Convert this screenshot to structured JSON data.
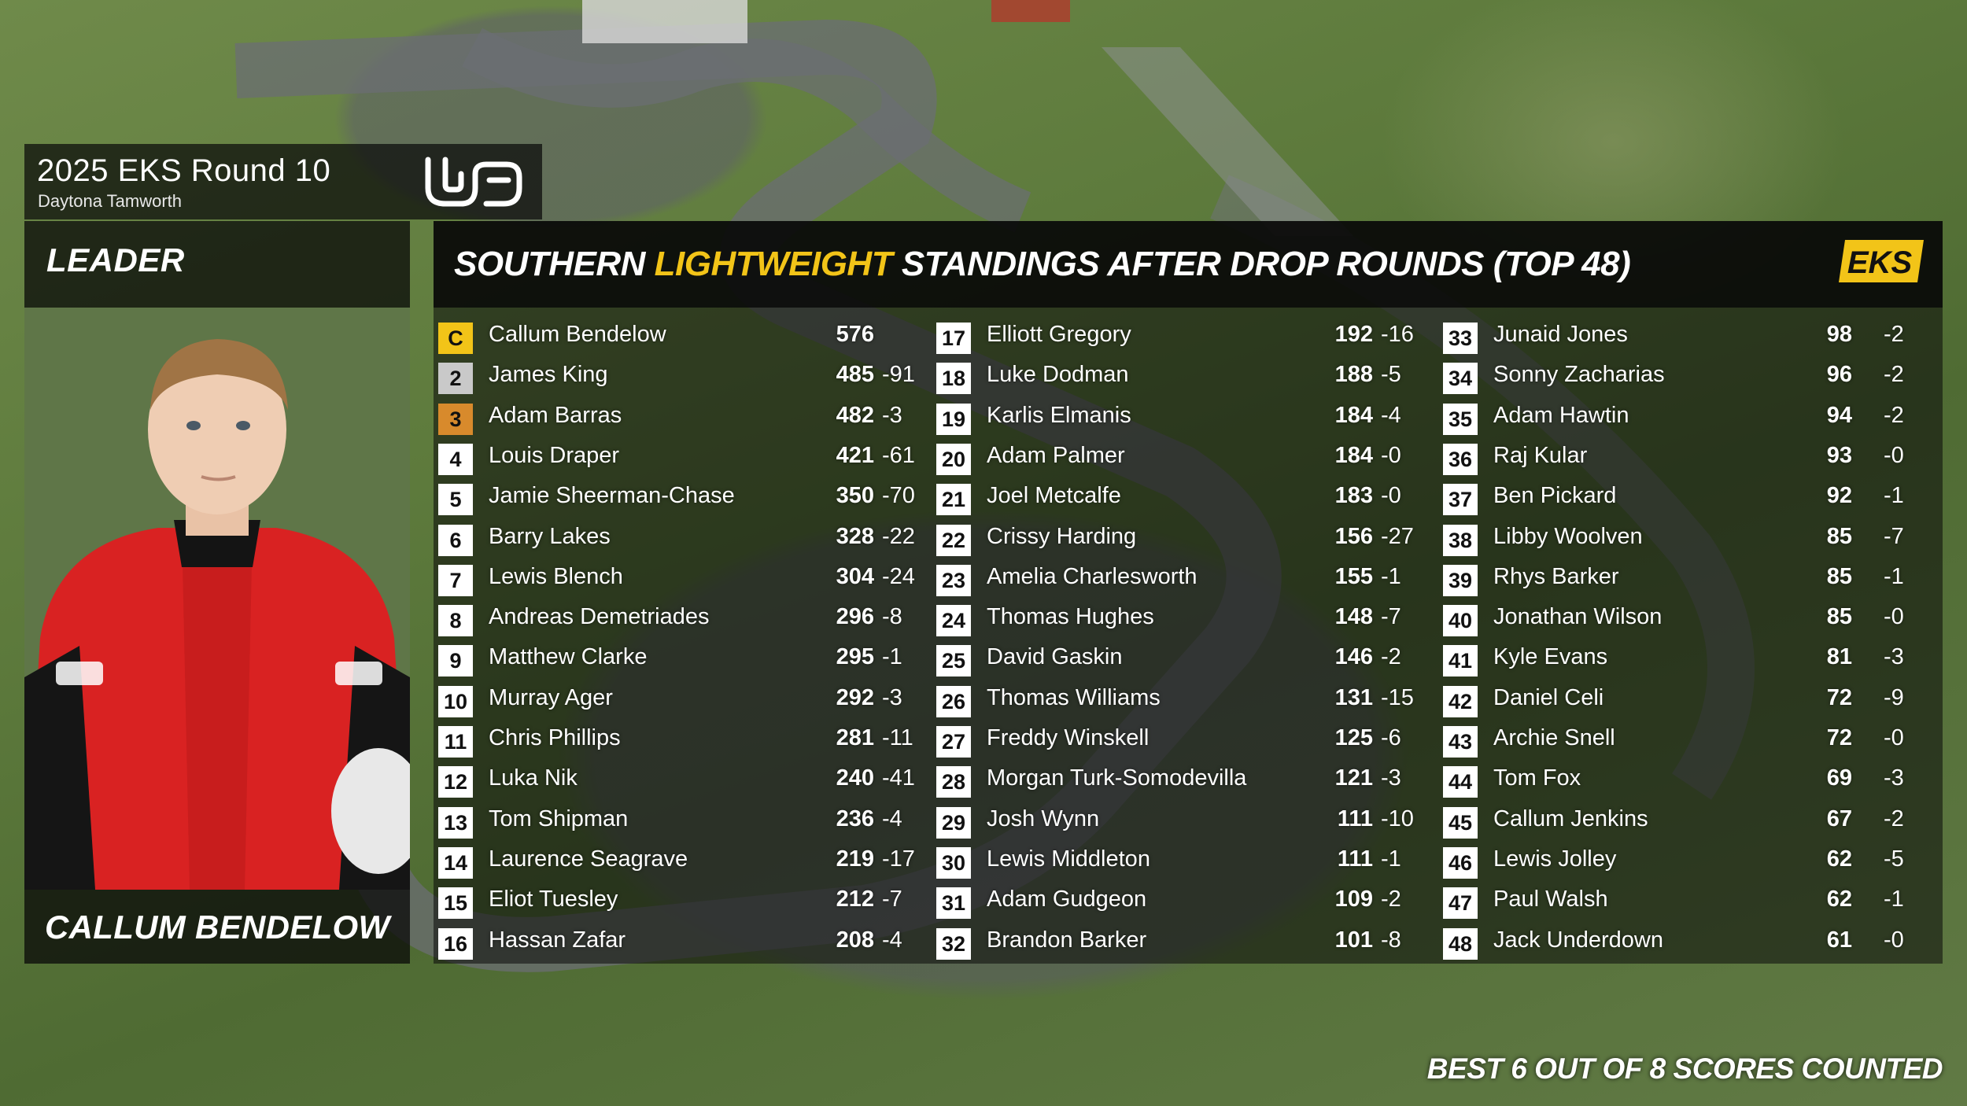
{
  "event": {
    "title": "2025 EKS Round 10",
    "venue": "Daytona Tamworth"
  },
  "leader": {
    "label": "LEADER",
    "name": "CALLUM BENDELOW"
  },
  "standings": {
    "title_part1": "SOUTHERN ",
    "title_accent": "LIGHTWEIGHT",
    "title_part2": " STANDINGS AFTER DROP ROUNDS (TOP 48)",
    "accent_color": "#f2c418",
    "logo_text": "EKS",
    "rows": [
      {
        "pos": "C",
        "name": "Callum Bendelow",
        "points": "576",
        "drop": ""
      },
      {
        "pos": "2",
        "name": "James King",
        "points": "485",
        "drop": "-91"
      },
      {
        "pos": "3",
        "name": "Adam Barras",
        "points": "482",
        "drop": "-3"
      },
      {
        "pos": "4",
        "name": "Louis Draper",
        "points": "421",
        "drop": "-61"
      },
      {
        "pos": "5",
        "name": "Jamie Sheerman-Chase",
        "points": "350",
        "drop": "-70"
      },
      {
        "pos": "6",
        "name": "Barry Lakes",
        "points": "328",
        "drop": "-22"
      },
      {
        "pos": "7",
        "name": "Lewis Blench",
        "points": "304",
        "drop": "-24"
      },
      {
        "pos": "8",
        "name": "Andreas Demetriades",
        "points": "296",
        "drop": "-8"
      },
      {
        "pos": "9",
        "name": "Matthew Clarke",
        "points": "295",
        "drop": "-1"
      },
      {
        "pos": "10",
        "name": "Murray Ager",
        "points": "292",
        "drop": "-3"
      },
      {
        "pos": "11",
        "name": "Chris Phillips",
        "points": "281",
        "drop": "-11"
      },
      {
        "pos": "12",
        "name": "Luka Nik",
        "points": "240",
        "drop": "-41"
      },
      {
        "pos": "13",
        "name": "Tom Shipman",
        "points": "236",
        "drop": "-4"
      },
      {
        "pos": "14",
        "name": "Laurence Seagrave",
        "points": "219",
        "drop": "-17"
      },
      {
        "pos": "15",
        "name": "Eliot Tuesley",
        "points": "212",
        "drop": "-7"
      },
      {
        "pos": "16",
        "name": "Hassan Zafar",
        "points": "208",
        "drop": "-4"
      },
      {
        "pos": "17",
        "name": "Elliott Gregory",
        "points": "192",
        "drop": "-16"
      },
      {
        "pos": "18",
        "name": "Luke Dodman",
        "points": "188",
        "drop": "-5"
      },
      {
        "pos": "19",
        "name": "Karlis Elmanis",
        "points": "184",
        "drop": "-4"
      },
      {
        "pos": "20",
        "name": "Adam Palmer",
        "points": "184",
        "drop": "-0"
      },
      {
        "pos": "21",
        "name": "Joel Metcalfe",
        "points": "183",
        "drop": "-0"
      },
      {
        "pos": "22",
        "name": "Crissy Harding",
        "points": "156",
        "drop": "-27"
      },
      {
        "pos": "23",
        "name": "Amelia Charlesworth",
        "points": "155",
        "drop": "-1"
      },
      {
        "pos": "24",
        "name": "Thomas Hughes",
        "points": "148",
        "drop": "-7"
      },
      {
        "pos": "25",
        "name": "David Gaskin",
        "points": "146",
        "drop": "-2"
      },
      {
        "pos": "26",
        "name": "Thomas Williams",
        "points": "131",
        "drop": "-15"
      },
      {
        "pos": "27",
        "name": "Freddy Winskell",
        "points": "125",
        "drop": "-6"
      },
      {
        "pos": "28",
        "name": "Morgan Turk-Somodevilla",
        "points": "121",
        "drop": "-3"
      },
      {
        "pos": "29",
        "name": "Josh Wynn",
        "points": "111",
        "drop": "-10"
      },
      {
        "pos": "30",
        "name": "Lewis Middleton",
        "points": "111",
        "drop": "-1"
      },
      {
        "pos": "31",
        "name": "Adam Gudgeon",
        "points": "109",
        "drop": "-2"
      },
      {
        "pos": "32",
        "name": "Brandon Barker",
        "points": "101",
        "drop": "-8"
      },
      {
        "pos": "33",
        "name": "Junaid Jones",
        "points": "98",
        "drop": "-2"
      },
      {
        "pos": "34",
        "name": "Sonny Zacharias",
        "points": "96",
        "drop": "-2"
      },
      {
        "pos": "35",
        "name": "Adam Hawtin",
        "points": "94",
        "drop": "-2"
      },
      {
        "pos": "36",
        "name": "Raj Kular",
        "points": "93",
        "drop": "-0"
      },
      {
        "pos": "37",
        "name": "Ben Pickard",
        "points": "92",
        "drop": "-1"
      },
      {
        "pos": "38",
        "name": "Libby Woolven",
        "points": "85",
        "drop": "-7"
      },
      {
        "pos": "39",
        "name": "Rhys Barker",
        "points": "85",
        "drop": "-1"
      },
      {
        "pos": "40",
        "name": "Jonathan Wilson",
        "points": "85",
        "drop": "-0"
      },
      {
        "pos": "41",
        "name": "Kyle Evans",
        "points": "81",
        "drop": "-3"
      },
      {
        "pos": "42",
        "name": "Daniel Celi",
        "points": "72",
        "drop": "-9"
      },
      {
        "pos": "43",
        "name": "Archie Snell",
        "points": "72",
        "drop": "-0"
      },
      {
        "pos": "44",
        "name": "Tom Fox",
        "points": "69",
        "drop": "-3"
      },
      {
        "pos": "45",
        "name": "Callum Jenkins",
        "points": "67",
        "drop": "-2"
      },
      {
        "pos": "46",
        "name": "Lewis Jolley",
        "points": "62",
        "drop": "-5"
      },
      {
        "pos": "47",
        "name": "Paul Walsh",
        "points": "62",
        "drop": "-1"
      },
      {
        "pos": "48",
        "name": "Jack Underdown",
        "points": "61",
        "drop": "-0"
      }
    ]
  },
  "footer": {
    "note": "BEST 6 OUT OF 8 SCORES COUNTED"
  },
  "icons": {
    "track_logo": "daytona-track-logo-icon",
    "series_logo": "eks-logo-icon"
  }
}
